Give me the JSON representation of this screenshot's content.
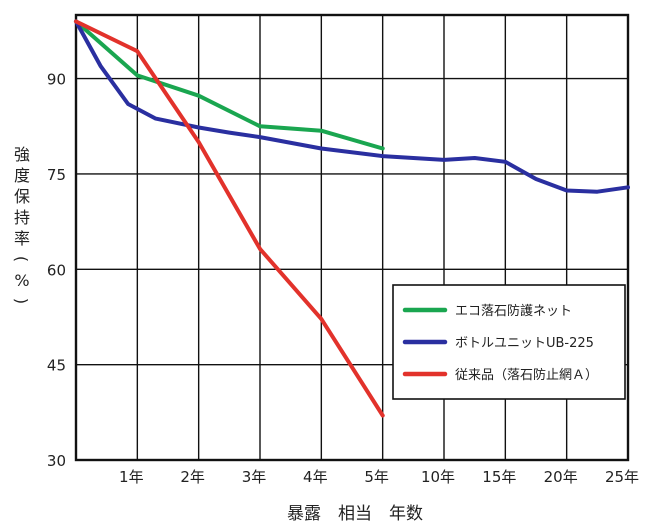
{
  "chart_data": {
    "type": "line",
    "xlabel": "暴露　相当　年数",
    "ylabel": "強度保持率(%)",
    "x_categories": [
      "1年",
      "2年",
      "3年",
      "4年",
      "5年",
      "10年",
      "15年",
      "20年",
      "25年"
    ],
    "y_ticks": [
      "90",
      "75",
      "60",
      "45",
      "30"
    ],
    "ylim": [
      30,
      100
    ],
    "grid": true,
    "legend_position": "inside-right",
    "series": [
      {
        "name": "エコ落石防護ネット",
        "color": "#1aa650",
        "points": [
          [
            0,
            99
          ],
          [
            1,
            90.5
          ],
          [
            2,
            87.3
          ],
          [
            3,
            82.5
          ],
          [
            4,
            81.8
          ],
          [
            5,
            79
          ]
        ]
      },
      {
        "name": "ボトルユニットUB-225",
        "color": "#2a2fa0",
        "points": [
          [
            0,
            99
          ],
          [
            0.4,
            92
          ],
          [
            0.85,
            86
          ],
          [
            1.3,
            83.7
          ],
          [
            2,
            82.3
          ],
          [
            2.5,
            81.5
          ],
          [
            3,
            80.8
          ],
          [
            4,
            79
          ],
          [
            5,
            77.8
          ],
          [
            5.5,
            77.5
          ],
          [
            6,
            77.2
          ],
          [
            6.5,
            77.5
          ],
          [
            7,
            76.9
          ],
          [
            7.5,
            74.2
          ],
          [
            8,
            72.4
          ],
          [
            8.5,
            72.2
          ],
          [
            9,
            72.9
          ]
        ]
      },
      {
        "name": "従来品（落石防止網Ａ）",
        "color": "#e2322b",
        "points": [
          [
            0,
            99
          ],
          [
            1,
            94.3
          ],
          [
            2,
            80
          ],
          [
            3,
            63.2
          ],
          [
            4,
            52.2
          ],
          [
            5,
            37
          ]
        ]
      }
    ]
  }
}
